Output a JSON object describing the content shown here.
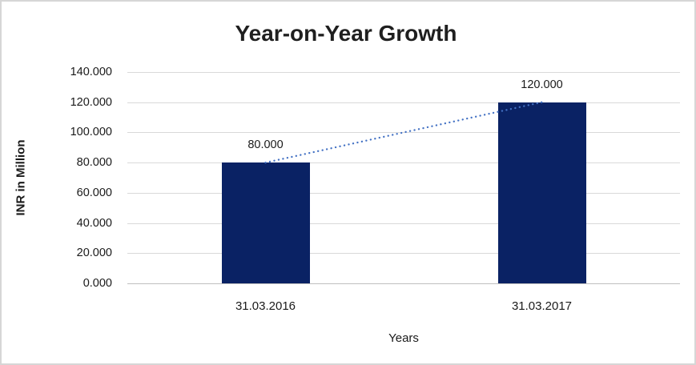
{
  "chart_data": {
    "type": "bar",
    "title": "Year-on-Year Growth",
    "xlabel": "Years",
    "ylabel": "INR in Million",
    "categories": [
      "31.03.2016",
      "31.03.2017"
    ],
    "values": [
      80,
      120
    ],
    "data_labels": [
      "80.000",
      "120.000"
    ],
    "ylim": [
      0,
      140
    ],
    "ytick_step": 20,
    "ytick_labels": [
      "0.000",
      "20.000",
      "40.000",
      "60.000",
      "80.000",
      "100.000",
      "120.000",
      "140.000"
    ],
    "grid": true,
    "legend": false,
    "trendline": {
      "type": "linear",
      "style": "dotted",
      "connects": [
        80,
        120
      ],
      "color": "#4472c4"
    },
    "colors": {
      "bar": "#0a2264",
      "gridline": "#d9d9d9",
      "axis_line": "#bfbfbf",
      "text": "#1a1a1a",
      "border": "#d6d6d6",
      "background": "#ffffff"
    }
  }
}
